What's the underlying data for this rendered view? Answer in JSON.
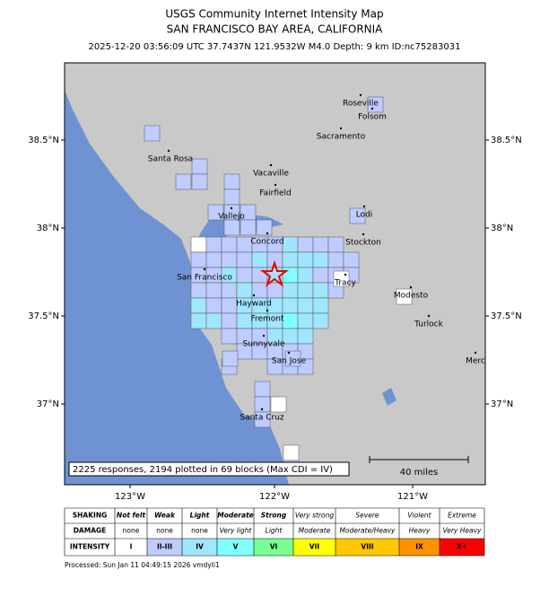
{
  "header": {
    "title": "USGS Community Internet Intensity Map",
    "subtitle": "SAN FRANCISCO BAY AREA, CALIFORNIA",
    "info": "2025-12-20 03:56:09 UTC 37.7437N 121.9532W M4.0 Depth: 9 km ID:nc75283031"
  },
  "map": {
    "cities": [
      "Roseville",
      "Folsom",
      "Sacramento",
      "Santa Rosa",
      "Vacaville",
      "Fairfield",
      "Vallejo",
      "Lodi",
      "Concord",
      "Stockton",
      "San Francisco",
      "Tracy",
      "Modesto",
      "Hayward",
      "Fremont",
      "Turlock",
      "Sunnyvale",
      "San Jose",
      "Santa Cruz",
      "Merc"
    ],
    "lat_ticks": [
      "38.5°N",
      "38°N",
      "37.5°N",
      "37°N"
    ],
    "lon_ticks": [
      "123°W",
      "122°W",
      "121°W"
    ],
    "note": "2225 responses, 2194 plotted in 69 blocks (Max CDI = IV)",
    "scale_label": "40 miles"
  },
  "legend": {
    "row_headers": [
      "SHAKING",
      "DAMAGE",
      "INTENSITY"
    ],
    "shaking": [
      "Not felt",
      "Weak",
      "Light",
      "Moderate",
      "Strong",
      "Very strong",
      "Severe",
      "Violent",
      "Extreme"
    ],
    "damage": [
      "none",
      "none",
      "none",
      "Very light",
      "Light",
      "Moderate",
      "Moderate/Heavy",
      "Heavy",
      "Very Heavy"
    ],
    "intensity": [
      "I",
      "II-III",
      "IV",
      "V",
      "VI",
      "VII",
      "VIII",
      "IX",
      "X+"
    ]
  },
  "footer": "Processed: Sun Jan 11 04:49:15 2026 vmdyli1"
}
